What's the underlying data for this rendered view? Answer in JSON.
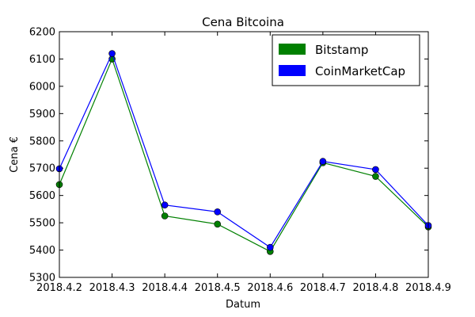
{
  "chart_data": {
    "type": "line",
    "title": "Cena Bitcoina",
    "xlabel": "Datum",
    "ylabel": "Cena €",
    "categories": [
      "2018.4.2",
      "2018.4.3",
      "2018.4.4",
      "2018.4.5",
      "2018.4.6",
      "2018.4.7",
      "2018.4.8",
      "2018.4.9"
    ],
    "xlim": [
      0,
      7
    ],
    "ylim": [
      5300,
      6200
    ],
    "y_ticks": [
      5300,
      5400,
      5500,
      5600,
      5700,
      5800,
      5900,
      6000,
      6100,
      6200
    ],
    "grid": false,
    "legend_position": "top-right",
    "series": [
      {
        "name": "Bitstamp",
        "color": "#008000",
        "values": [
          5640,
          6100,
          5525,
          5495,
          5395,
          5720,
          5670,
          5485
        ]
      },
      {
        "name": "CoinMarketCap",
        "color": "#0000ff",
        "values": [
          5698,
          6120,
          5565,
          5540,
          5410,
          5725,
          5695,
          5490
        ]
      }
    ]
  }
}
